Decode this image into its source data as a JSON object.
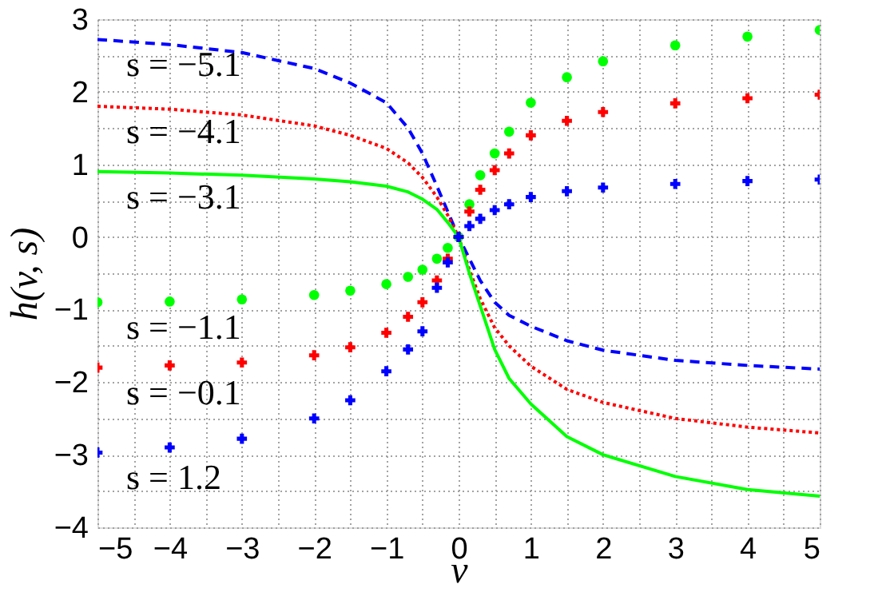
{
  "chart_data": {
    "type": "line",
    "xlabel": "v",
    "ylabel": "h(v, s)",
    "x": [
      -5,
      -4,
      -3,
      -2,
      -1.5,
      -1,
      -0.7,
      -0.5,
      -0.3,
      -0.15,
      0,
      0.15,
      0.3,
      0.5,
      0.7,
      1,
      1.5,
      2,
      3,
      4,
      5
    ],
    "series": [
      {
        "name": "s = −5.1",
        "line_style": "dashed",
        "color": "#0000ff",
        "values": [
          2.72,
          2.65,
          2.54,
          2.32,
          2.12,
          1.85,
          1.5,
          1.15,
          0.7,
          0.35,
          0,
          -0.3,
          -0.6,
          -0.9,
          -1.08,
          -1.23,
          -1.43,
          -1.56,
          -1.7,
          -1.77,
          -1.82
        ]
      },
      {
        "name": "s = −4.1",
        "line_style": "dotted",
        "color": "#ff0000",
        "values": [
          1.8,
          1.76,
          1.68,
          1.53,
          1.4,
          1.22,
          1.02,
          0.82,
          0.55,
          0.3,
          0,
          -0.45,
          -0.85,
          -1.25,
          -1.5,
          -1.78,
          -2.1,
          -2.28,
          -2.5,
          -2.62,
          -2.7
        ]
      },
      {
        "name": "s = −3.1",
        "line_style": "solid",
        "color": "#00ff00",
        "values": [
          0.9,
          0.88,
          0.85,
          0.8,
          0.76,
          0.7,
          0.62,
          0.52,
          0.38,
          0.2,
          0,
          -0.5,
          -0.95,
          -1.55,
          -1.95,
          -2.3,
          -2.75,
          -3.0,
          -3.3,
          -3.48,
          -3.57
        ]
      },
      {
        "name": "s = −1.1",
        "type": "scatter",
        "marker": "circle",
        "color": "#00ff00",
        "values": [
          -0.9,
          -0.89,
          -0.86,
          -0.8,
          -0.74,
          -0.65,
          -0.55,
          -0.45,
          -0.3,
          -0.15,
          0,
          0.45,
          0.85,
          1.15,
          1.45,
          1.85,
          2.2,
          2.42,
          2.64,
          2.76,
          2.85
        ]
      },
      {
        "name": "s = −0.1",
        "type": "scatter",
        "marker": "cross",
        "color": "#ff0000",
        "values": [
          -1.8,
          -1.77,
          -1.73,
          -1.63,
          -1.52,
          -1.32,
          -1.1,
          -0.9,
          -0.6,
          -0.3,
          0,
          0.35,
          0.65,
          0.92,
          1.15,
          1.4,
          1.6,
          1.72,
          1.84,
          1.91,
          1.96
        ]
      },
      {
        "name": "s = 1.2",
        "type": "scatter",
        "marker": "cross",
        "color": "#0000ff",
        "values": [
          -2.97,
          -2.9,
          -2.78,
          -2.5,
          -2.25,
          -1.85,
          -1.55,
          -1.3,
          -0.7,
          -0.35,
          0,
          0.15,
          0.25,
          0.37,
          0.45,
          0.55,
          0.63,
          0.68,
          0.73,
          0.77,
          0.79
        ]
      }
    ],
    "xlim": [
      -5,
      5
    ],
    "xticks": [
      -5,
      {
        "value": -4.5,
        "label": null
      },
      -4,
      {
        "value": -3.5,
        "label": null
      },
      -3,
      {
        "value": -2.5,
        "label": null
      },
      -2,
      {
        "value": -1.5,
        "label": null
      },
      -1,
      {
        "value": -0.5,
        "label": null
      },
      0,
      {
        "value": 0.5,
        "label": null
      },
      1,
      {
        "value": 1.5,
        "label": null
      },
      2,
      {
        "value": 2.5,
        "label": null
      },
      3,
      {
        "value": 3.5,
        "label": null
      },
      4,
      {
        "value": 4.5,
        "label": null
      },
      5
    ],
    "ylim": [
      -4,
      3
    ],
    "yticks": [
      -4,
      {
        "value": -3.5,
        "label": null
      },
      -3,
      {
        "value": -2.5,
        "label": null
      },
      -2,
      {
        "value": -1.5,
        "label": null
      },
      -1,
      {
        "value": -0.5,
        "label": null
      },
      0,
      {
        "value": 0.5,
        "label": null
      },
      1,
      {
        "value": 1.5,
        "label": null
      },
      2,
      {
        "value": 2.5,
        "label": null
      },
      3
    ],
    "grid": true
  }
}
